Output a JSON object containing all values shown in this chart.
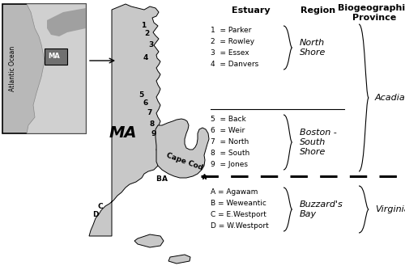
{
  "fig_width": 5.0,
  "fig_height": 3.34,
  "dpi": 100,
  "bg_color": "#ffffff",
  "map_fill": "#c8c8c8",
  "map_edge": "#000000",
  "title_col1": "Estuary",
  "title_col2": "Region",
  "title_col3": "Biogeographic\nProvince",
  "north_shore_estuaries": [
    "1  = Parker",
    "2  = Rowley",
    "3  = Essex",
    "4  = Danvers"
  ],
  "boston_shore_estuaries": [
    "5  = Back",
    "6  = Weir",
    "7  = North",
    "8  = South",
    "9  = Jones"
  ],
  "buzzards_estuaries": [
    "A = Agawam",
    "B = Weweantic",
    "C = E.Westport",
    "D = W.Westport"
  ],
  "north_shore_region": "North\nShore",
  "boston_region": "Boston -\nSouth\nShore",
  "buzzards_region": "Buzzard's\nBay",
  "acadian_province": "Acadian",
  "virginian_province": "Virginian",
  "ma_label": "MA",
  "atlantic_label": "Atlantic Ocean",
  "cape_cod_label": "Cape Cod",
  "inset_ma_label": "MA"
}
